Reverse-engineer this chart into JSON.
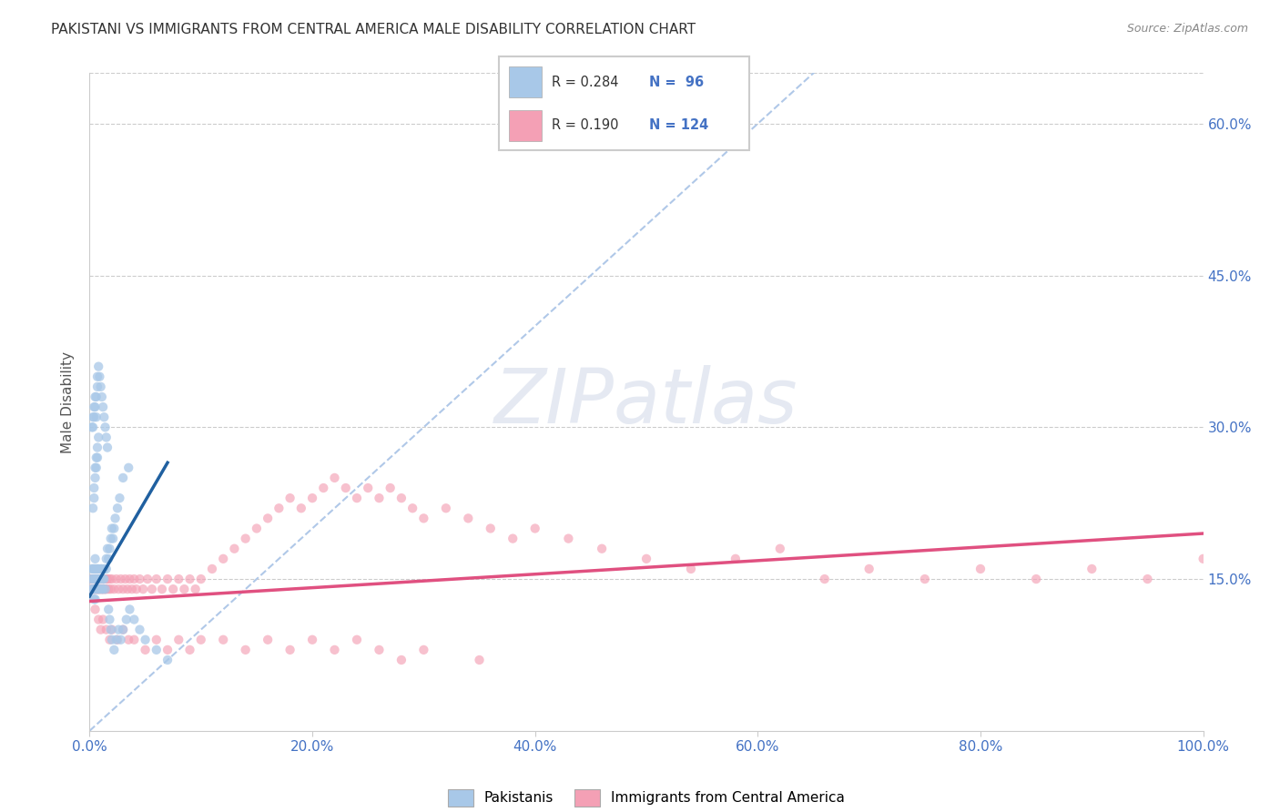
{
  "title": "PAKISTANI VS IMMIGRANTS FROM CENTRAL AMERICA MALE DISABILITY CORRELATION CHART",
  "source": "Source: ZipAtlas.com",
  "ylabel": "Male Disability",
  "legend_labels": [
    "Pakistanis",
    "Immigrants from Central America"
  ],
  "blue_color": "#a8c8e8",
  "pink_color": "#f4a0b5",
  "blue_line_color": "#2060a0",
  "pink_line_color": "#e05080",
  "diagonal_color": "#b0c8e8",
  "R_blue": 0.284,
  "N_blue": 96,
  "R_pink": 0.19,
  "N_pink": 124,
  "blue_scatter_x": [
    0.001,
    0.002,
    0.002,
    0.003,
    0.003,
    0.003,
    0.004,
    0.004,
    0.004,
    0.004,
    0.005,
    0.005,
    0.005,
    0.005,
    0.005,
    0.006,
    0.006,
    0.006,
    0.006,
    0.007,
    0.007,
    0.007,
    0.008,
    0.008,
    0.008,
    0.009,
    0.009,
    0.01,
    0.01,
    0.011,
    0.011,
    0.012,
    0.012,
    0.013,
    0.013,
    0.014,
    0.015,
    0.015,
    0.016,
    0.017,
    0.018,
    0.019,
    0.02,
    0.021,
    0.022,
    0.023,
    0.025,
    0.027,
    0.03,
    0.035,
    0.003,
    0.004,
    0.004,
    0.005,
    0.005,
    0.006,
    0.006,
    0.007,
    0.007,
    0.008,
    0.002,
    0.003,
    0.003,
    0.004,
    0.004,
    0.005,
    0.005,
    0.006,
    0.006,
    0.007,
    0.007,
    0.008,
    0.009,
    0.01,
    0.011,
    0.012,
    0.013,
    0.014,
    0.015,
    0.016,
    0.017,
    0.018,
    0.019,
    0.02,
    0.022,
    0.024,
    0.026,
    0.028,
    0.03,
    0.033,
    0.036,
    0.04,
    0.045,
    0.05,
    0.06,
    0.07
  ],
  "blue_scatter_y": [
    0.15,
    0.14,
    0.16,
    0.15,
    0.14,
    0.16,
    0.15,
    0.14,
    0.13,
    0.16,
    0.15,
    0.14,
    0.16,
    0.13,
    0.17,
    0.15,
    0.14,
    0.16,
    0.15,
    0.15,
    0.14,
    0.16,
    0.15,
    0.14,
    0.16,
    0.15,
    0.14,
    0.16,
    0.15,
    0.14,
    0.16,
    0.15,
    0.14,
    0.16,
    0.15,
    0.14,
    0.16,
    0.17,
    0.18,
    0.17,
    0.18,
    0.19,
    0.2,
    0.19,
    0.2,
    0.21,
    0.22,
    0.23,
    0.25,
    0.26,
    0.22,
    0.23,
    0.24,
    0.25,
    0.26,
    0.27,
    0.26,
    0.27,
    0.28,
    0.29,
    0.3,
    0.31,
    0.3,
    0.31,
    0.32,
    0.33,
    0.32,
    0.31,
    0.33,
    0.34,
    0.35,
    0.36,
    0.35,
    0.34,
    0.33,
    0.32,
    0.31,
    0.3,
    0.29,
    0.28,
    0.12,
    0.11,
    0.1,
    0.09,
    0.08,
    0.09,
    0.1,
    0.09,
    0.1,
    0.11,
    0.12,
    0.11,
    0.1,
    0.09,
    0.08,
    0.07
  ],
  "pink_scatter_x": [
    0.001,
    0.002,
    0.002,
    0.003,
    0.003,
    0.004,
    0.004,
    0.005,
    0.005,
    0.006,
    0.006,
    0.007,
    0.007,
    0.008,
    0.008,
    0.009,
    0.009,
    0.01,
    0.01,
    0.011,
    0.011,
    0.012,
    0.012,
    0.013,
    0.013,
    0.014,
    0.015,
    0.015,
    0.016,
    0.017,
    0.018,
    0.019,
    0.02,
    0.022,
    0.024,
    0.026,
    0.028,
    0.03,
    0.032,
    0.034,
    0.036,
    0.038,
    0.04,
    0.042,
    0.045,
    0.048,
    0.052,
    0.056,
    0.06,
    0.065,
    0.07,
    0.075,
    0.08,
    0.085,
    0.09,
    0.095,
    0.1,
    0.11,
    0.12,
    0.13,
    0.14,
    0.15,
    0.16,
    0.17,
    0.18,
    0.19,
    0.2,
    0.21,
    0.22,
    0.23,
    0.24,
    0.25,
    0.26,
    0.27,
    0.28,
    0.29,
    0.3,
    0.32,
    0.34,
    0.36,
    0.38,
    0.4,
    0.43,
    0.46,
    0.5,
    0.54,
    0.58,
    0.62,
    0.66,
    0.7,
    0.75,
    0.8,
    0.85,
    0.9,
    0.95,
    1.0,
    0.005,
    0.008,
    0.01,
    0.012,
    0.015,
    0.018,
    0.02,
    0.025,
    0.03,
    0.035,
    0.04,
    0.05,
    0.06,
    0.07,
    0.08,
    0.09,
    0.1,
    0.12,
    0.14,
    0.16,
    0.18,
    0.2,
    0.22,
    0.24,
    0.26,
    0.28,
    0.3,
    0.35
  ],
  "pink_scatter_y": [
    0.15,
    0.14,
    0.15,
    0.14,
    0.15,
    0.14,
    0.15,
    0.14,
    0.15,
    0.14,
    0.15,
    0.14,
    0.15,
    0.14,
    0.15,
    0.14,
    0.15,
    0.14,
    0.15,
    0.14,
    0.15,
    0.14,
    0.15,
    0.14,
    0.15,
    0.14,
    0.15,
    0.14,
    0.15,
    0.14,
    0.15,
    0.14,
    0.15,
    0.14,
    0.15,
    0.14,
    0.15,
    0.14,
    0.15,
    0.14,
    0.15,
    0.14,
    0.15,
    0.14,
    0.15,
    0.14,
    0.15,
    0.14,
    0.15,
    0.14,
    0.15,
    0.14,
    0.15,
    0.14,
    0.15,
    0.14,
    0.15,
    0.16,
    0.17,
    0.18,
    0.19,
    0.2,
    0.21,
    0.22,
    0.23,
    0.22,
    0.23,
    0.24,
    0.25,
    0.24,
    0.23,
    0.24,
    0.23,
    0.24,
    0.23,
    0.22,
    0.21,
    0.22,
    0.21,
    0.2,
    0.19,
    0.2,
    0.19,
    0.18,
    0.17,
    0.16,
    0.17,
    0.18,
    0.15,
    0.16,
    0.15,
    0.16,
    0.15,
    0.16,
    0.15,
    0.17,
    0.12,
    0.11,
    0.1,
    0.11,
    0.1,
    0.09,
    0.1,
    0.09,
    0.1,
    0.09,
    0.09,
    0.08,
    0.09,
    0.08,
    0.09,
    0.08,
    0.09,
    0.09,
    0.08,
    0.09,
    0.08,
    0.09,
    0.08,
    0.09,
    0.08,
    0.07,
    0.08,
    0.07
  ],
  "blue_regline_x": [
    0.0,
    0.07
  ],
  "blue_regline_y": [
    0.133,
    0.265
  ],
  "pink_regline_x": [
    0.0,
    1.0
  ],
  "pink_regline_y": [
    0.128,
    0.195
  ],
  "xlim": [
    0.0,
    1.0
  ],
  "ylim": [
    0.0,
    0.65
  ],
  "x_ticks": [
    0.0,
    0.2,
    0.4,
    0.6,
    0.8,
    1.0
  ],
  "y_ticks": [
    0.15,
    0.3,
    0.45,
    0.6
  ],
  "title_fontsize": 11,
  "axis_tick_fontsize": 11,
  "ylabel_fontsize": 11,
  "watermark": "ZIPatlas",
  "watermark_fontsize": 60
}
